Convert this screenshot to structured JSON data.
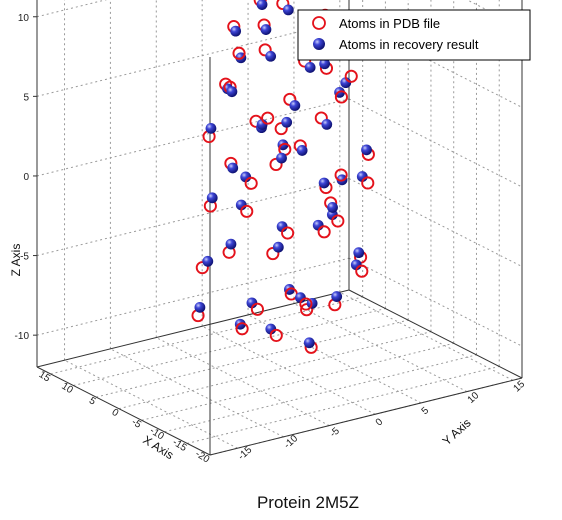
{
  "chart_data": {
    "type": "scatter",
    "subtype": "3d-scatter",
    "title": "Protein 2M5Z",
    "xlabel": "X Axis",
    "ylabel": "Y Axis",
    "zlabel": "Z Axis",
    "xlim": [
      -20,
      18
    ],
    "ylim": [
      -18,
      16
    ],
    "zlim": [
      -12,
      13
    ],
    "x_ticks": [
      -20,
      -15,
      -10,
      -5,
      0,
      5,
      10,
      15
    ],
    "y_ticks": [
      -15,
      -10,
      -5,
      0,
      5,
      10,
      15
    ],
    "z_ticks": [
      -10,
      -5,
      0,
      5,
      10
    ],
    "grid": true,
    "legend_position": "top-right",
    "colors": {
      "pdb": "#e4121b",
      "recovery": "#1a1fa8"
    },
    "series": [
      {
        "name": "Atoms in PDB file",
        "marker": "open-circle",
        "color": "#e4121b",
        "points": [
          [
            -10.5,
            1.0,
            1.5
          ],
          [
            -9.6,
            -0.4,
            -2.0
          ],
          [
            -8.7,
            4.8,
            0.2
          ],
          [
            -7.5,
            -3.1,
            6.4
          ],
          [
            -6.1,
            2.5,
            -7.5
          ],
          [
            -5.2,
            -2.9,
            4.2
          ],
          [
            -4.3,
            6.2,
            -5.3
          ],
          [
            -3.4,
            -6.6,
            9.2
          ],
          [
            -2.2,
            3.3,
            8.3
          ],
          [
            -1.1,
            -1.4,
            -9.6
          ],
          [
            0.1,
            4.1,
            3.1
          ],
          [
            1.0,
            -5.5,
            -4.1
          ],
          [
            1.9,
            0.8,
            10.5
          ],
          [
            2.8,
            -2.2,
            -0.5
          ],
          [
            4.0,
            6.6,
            5.3
          ],
          [
            5.2,
            -6.8,
            -8.5
          ],
          [
            6.1,
            3.1,
            0.4
          ],
          [
            7.0,
            -0.6,
            -3.1
          ],
          [
            8.2,
            2.0,
            6.5
          ],
          [
            9.1,
            -4.4,
            -6.4
          ],
          [
            -9.4,
            3.8,
            -5.1
          ],
          [
            -8.3,
            -5.0,
            2.7
          ],
          [
            -7.2,
            1.5,
            -0.8
          ],
          [
            -6.3,
            4.6,
            9.7
          ],
          [
            -5.0,
            -2.1,
            -2.5
          ],
          [
            -3.9,
            0.3,
            7.8
          ],
          [
            -2.8,
            -4.3,
            -7.3
          ],
          [
            -1.7,
            5.4,
            4.5
          ],
          [
            -0.6,
            -6.1,
            1.8
          ],
          [
            0.5,
            2.7,
            -8.8
          ],
          [
            1.6,
            -1.0,
            3.6
          ],
          [
            2.7,
            5.9,
            -1.9
          ],
          [
            3.8,
            -3.6,
            9.4
          ],
          [
            4.9,
            1.2,
            -5.7
          ],
          [
            6.0,
            -5.2,
            2.4
          ],
          [
            7.1,
            4.3,
            -9.0
          ],
          [
            8.0,
            -2.4,
            5.0
          ],
          [
            -10.2,
            -3.3,
            3.9
          ],
          [
            -4.6,
            6.9,
            1.1
          ],
          [
            3.3,
            -6.4,
            -1.4
          ],
          [
            -7.8,
            0.6,
            11.2
          ],
          [
            -1.5,
            2.2,
            -10.8
          ],
          [
            4.4,
            0.0,
            8.9
          ],
          [
            -6.6,
            -0.9,
            -6.9
          ],
          [
            0.9,
            6.3,
            -3.8
          ],
          [
            5.6,
            -1.8,
            -10.1
          ],
          [
            -2.4,
            -3.8,
            12.0
          ],
          [
            9.4,
            1.6,
            1.9
          ],
          [
            -8.9,
            2.9,
            7.2
          ],
          [
            2.2,
            -4.8,
            6.0
          ]
        ]
      },
      {
        "name": "Atoms in recovery result",
        "marker": "filled-sphere",
        "color": "#1a1fa8",
        "points": [
          [
            -10.1,
            1.3,
            1.1
          ],
          [
            -9.1,
            -0.8,
            -1.6
          ],
          [
            -8.3,
            4.4,
            0.6
          ],
          [
            -7.8,
            -2.7,
            6.0
          ],
          [
            -5.7,
            2.9,
            -7.1
          ],
          [
            -5.6,
            -2.5,
            4.6
          ],
          [
            -4.7,
            5.8,
            -4.9
          ],
          [
            -3.0,
            -6.2,
            8.8
          ],
          [
            -2.6,
            2.9,
            8.7
          ],
          [
            -0.7,
            -1.8,
            -9.2
          ],
          [
            -0.3,
            4.5,
            2.7
          ],
          [
            1.4,
            -5.1,
            -3.7
          ],
          [
            1.5,
            1.2,
            10.1
          ],
          [
            3.2,
            -2.6,
            -0.1
          ],
          [
            3.6,
            6.2,
            5.7
          ],
          [
            5.6,
            -6.4,
            -8.1
          ],
          [
            5.7,
            2.7,
            0.8
          ],
          [
            7.4,
            -1.0,
            -2.7
          ],
          [
            7.8,
            2.4,
            6.1
          ],
          [
            8.7,
            -4.0,
            -6.0
          ],
          [
            -9.0,
            3.4,
            -4.7
          ],
          [
            -8.7,
            -4.6,
            3.1
          ],
          [
            -6.8,
            1.9,
            -1.2
          ],
          [
            -6.7,
            4.2,
            9.3
          ],
          [
            -4.6,
            -2.5,
            -2.1
          ],
          [
            -4.3,
            0.7,
            7.4
          ],
          [
            -2.4,
            -4.7,
            -6.9
          ],
          [
            -2.1,
            5.0,
            4.9
          ],
          [
            -0.2,
            -5.7,
            1.4
          ],
          [
            0.1,
            3.1,
            -8.4
          ],
          [
            2.0,
            -1.4,
            3.2
          ],
          [
            2.3,
            5.5,
            -1.5
          ],
          [
            4.2,
            -3.2,
            9.0
          ],
          [
            4.5,
            1.6,
            -5.3
          ],
          [
            6.4,
            -4.8,
            2.8
          ],
          [
            6.7,
            3.9,
            -8.6
          ],
          [
            8.4,
            -2.0,
            4.6
          ],
          [
            -9.8,
            -2.9,
            3.5
          ],
          [
            -5.0,
            6.5,
            1.5
          ],
          [
            3.7,
            -6.0,
            -1.0
          ],
          [
            -7.4,
            1.0,
            10.8
          ],
          [
            -1.9,
            1.8,
            -10.4
          ],
          [
            4.8,
            0.4,
            8.5
          ],
          [
            -6.2,
            -1.3,
            -6.5
          ],
          [
            1.3,
            5.9,
            -3.4
          ],
          [
            5.2,
            -2.2,
            -9.7
          ],
          [
            -2.0,
            -3.4,
            11.6
          ],
          [
            9.0,
            2.0,
            1.5
          ],
          [
            -8.5,
            2.5,
            6.8
          ],
          [
            2.6,
            -4.4,
            5.6
          ]
        ]
      }
    ]
  }
}
